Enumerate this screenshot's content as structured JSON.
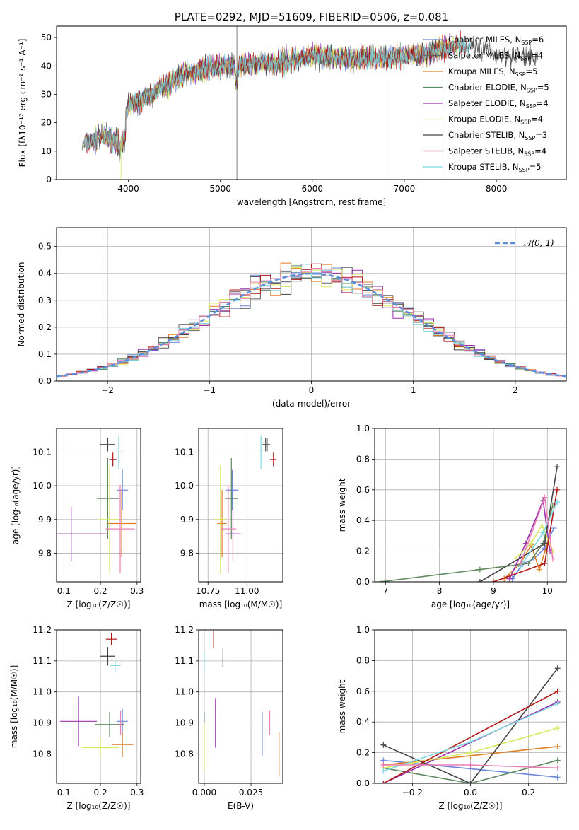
{
  "chart_data": [
    {
      "type": "line",
      "title": "PLATE=0292, MJD=51609, FIBERID=0506, z=0.081",
      "xlabel": "wavelength [Angstrom, rest frame]",
      "ylabel": "Flux [fλ10⁻¹⁷ erg cm⁻² s⁻¹ A⁻¹]",
      "xlim": [
        3220,
        8760
      ],
      "ylim": [
        0,
        54
      ],
      "xticks": [
        "4000",
        "5000",
        "6000",
        "7000",
        "8000"
      ],
      "yticks": [
        "0",
        "10",
        "20",
        "30",
        "40",
        "50"
      ],
      "legend_position": "right",
      "series": [
        {
          "name": "Chabrier MILES, N_SSP=6",
          "color": "#6a87d9"
        },
        {
          "name": "Salpeter MILES, N_SSP=4",
          "color": "#5f5f5f"
        },
        {
          "name": "Kroupa MILES, N_SSP=5",
          "color": "#e07d22"
        },
        {
          "name": "Chabrier ELODIE, N_SSP=5",
          "color": "#5e8a5e"
        },
        {
          "name": "Salpeter ELODIE, N_SSP=4",
          "color": "#9b30b0"
        },
        {
          "name": "Kroupa ELODIE, N_SSP=4",
          "color": "#d8e860"
        },
        {
          "name": "Chabrier STELIB, N_SSP=3",
          "color": "#444444"
        },
        {
          "name": "Salpeter STELIB, N_SSP=4",
          "color": "#b01515"
        },
        {
          "name": "Kroupa STELIB, N_SSP=5",
          "color": "#7fd8e0"
        }
      ],
      "approx_continuum": {
        "x": [
          3500,
          3700,
          3900,
          4000,
          4200,
          4400,
          4600,
          4800,
          5000,
          5200,
          5400,
          5600,
          5800,
          6000,
          6200,
          6400,
          6600,
          6800,
          7000,
          7200,
          7400,
          7600,
          7800,
          8000,
          8200,
          8400
        ],
        "y": [
          12,
          15,
          14,
          26,
          29,
          33,
          37,
          39,
          40,
          40,
          41,
          41,
          42,
          43,
          43,
          42,
          43,
          43,
          43,
          44,
          46,
          47,
          46,
          44,
          44,
          43
        ]
      }
    },
    {
      "type": "line",
      "xlabel": "(data-model)/error",
      "ylabel": "Normed distribution",
      "xlim": [
        -2.5,
        2.5
      ],
      "ylim": [
        0,
        0.57
      ],
      "xticks": [
        "−2",
        "−1",
        "0",
        "1",
        "2"
      ],
      "yticks": [
        "0.0",
        "0.1",
        "0.2",
        "0.3",
        "0.4",
        "0.5"
      ],
      "legend": "𝒩(0, 1)",
      "legend_position": "top-right",
      "grid": true,
      "reference_curve": {
        "type": "normal",
        "mean": 0,
        "sigma": 1,
        "color": "#5a8fde"
      }
    },
    {
      "type": "scatter",
      "xlabel": "Z [log₁₀(Z/Z☉)]",
      "ylabel": "age  [log₁₀(age/yr)]",
      "xlim": [
        0.08,
        0.31
      ],
      "ylim": [
        9.715,
        10.17
      ],
      "xticks": [
        "0.1",
        "0.2",
        "0.3"
      ],
      "yticks": [
        "9.8",
        "9.9",
        "10.0",
        "10.1"
      ],
      "grid": true,
      "points": [
        {
          "x": 0.26,
          "y": 9.987,
          "xerr": 0.015,
          "yerr": 0.06,
          "color": "#6a87d9"
        },
        {
          "x": 0.22,
          "y": 10.122,
          "xerr": 0.02,
          "yerr": 0.02,
          "color": "#5f5f5f"
        },
        {
          "x": 0.258,
          "y": 9.888,
          "xerr": 0.04,
          "yerr": 0.1,
          "color": "#e07d22"
        },
        {
          "x": 0.22,
          "y": 9.962,
          "xerr": 0.03,
          "yerr": 0.12,
          "color": "#5e8a5e"
        },
        {
          "x": 0.12,
          "y": 9.857,
          "xerr": 0.1,
          "yerr": 0.08,
          "color": "#9b30b0"
        },
        {
          "x": 0.225,
          "y": 9.9,
          "xerr": 0.03,
          "yerr": 0.16,
          "color": "#d8e860"
        },
        {
          "x": 0.22,
          "y": 10.122,
          "xerr": 0.02,
          "yerr": 0.02,
          "color": "#444444"
        },
        {
          "x": 0.234,
          "y": 10.078,
          "xerr": 0.01,
          "yerr": 0.02,
          "color": "#b01515"
        },
        {
          "x": 0.25,
          "y": 10.1,
          "xerr": 0.015,
          "yerr": 0.05,
          "color": "#7fd8e0"
        },
        {
          "x": 0.254,
          "y": 9.872,
          "xerr": 0.04,
          "yerr": 0.13,
          "color": "#e87fb5"
        }
      ]
    },
    {
      "type": "scatter",
      "xlabel": "mass [log₁₀(M/M☉)]",
      "xlim": [
        10.69,
        11.23
      ],
      "ylim": [
        9.715,
        10.17
      ],
      "xticks": [
        "10.75",
        "11.00"
      ],
      "yticks": [
        "9.8",
        "9.9",
        "10.0",
        "10.1"
      ],
      "grid": true,
      "points": [
        {
          "x": 10.905,
          "y": 9.987,
          "xerr": 0.04,
          "yerr": 0.06,
          "color": "#6a87d9"
        },
        {
          "x": 11.13,
          "y": 10.122,
          "xerr": 0.02,
          "yerr": 0.02,
          "color": "#5f5f5f"
        },
        {
          "x": 10.84,
          "y": 9.888,
          "xerr": 0.03,
          "yerr": 0.1,
          "color": "#e07d22"
        },
        {
          "x": 10.9,
          "y": 9.962,
          "xerr": 0.04,
          "yerr": 0.12,
          "color": "#5e8a5e"
        },
        {
          "x": 10.91,
          "y": 9.857,
          "xerr": 0.05,
          "yerr": 0.08,
          "color": "#9b30b0"
        },
        {
          "x": 10.83,
          "y": 9.9,
          "xerr": 0.04,
          "yerr": 0.16,
          "color": "#d8e860"
        },
        {
          "x": 11.12,
          "y": 10.122,
          "xerr": 0.02,
          "yerr": 0.02,
          "color": "#444444"
        },
        {
          "x": 11.17,
          "y": 10.078,
          "xerr": 0.02,
          "yerr": 0.02,
          "color": "#b01515"
        },
        {
          "x": 11.09,
          "y": 10.1,
          "xerr": 0.01,
          "yerr": 0.05,
          "color": "#7fd8e0"
        },
        {
          "x": 10.88,
          "y": 9.872,
          "xerr": 0.05,
          "yerr": 0.13,
          "color": "#e87fb5"
        }
      ]
    },
    {
      "type": "line",
      "xlabel": "age  [log₁₀(age/yr)]",
      "ylabel": "mass weight",
      "xlim": [
        6.8,
        10.35
      ],
      "ylim": [
        0,
        1.0
      ],
      "xticks": [
        "7",
        "8",
        "9",
        "10"
      ],
      "yticks": [
        "0.0",
        "0.2",
        "0.4",
        "0.6",
        "0.8",
        "1.0"
      ],
      "grid": true,
      "series": [
        {
          "color": "#6a87d9",
          "x": [
            9.35,
            9.55,
            9.75,
            9.95,
            10.12
          ],
          "y": [
            0.02,
            0.12,
            0.15,
            0.22,
            0.35
          ]
        },
        {
          "color": "#e07d22",
          "x": [
            9.2,
            9.5,
            9.7,
            9.85,
            10.0
          ],
          "y": [
            0.02,
            0.12,
            0.24,
            0.08,
            0.25
          ]
        },
        {
          "color": "#5e8a5e",
          "x": [
            6.9,
            8.75,
            9.65,
            9.92,
            10.1
          ],
          "y": [
            0.0,
            0.08,
            0.12,
            0.25,
            0.5
          ]
        },
        {
          "color": "#9b30b0",
          "x": [
            9.3,
            9.6,
            9.92,
            10.05
          ],
          "y": [
            0.02,
            0.25,
            0.53,
            0.2
          ]
        },
        {
          "color": "#d8e860",
          "x": [
            9.4,
            9.7,
            9.9,
            10.1
          ],
          "y": [
            0.15,
            0.25,
            0.37,
            0.2
          ]
        },
        {
          "color": "#444444",
          "x": [
            8.75,
            9.95,
            10.18
          ],
          "y": [
            0.0,
            0.25,
            0.75
          ]
        },
        {
          "color": "#b01515",
          "x": [
            9.0,
            9.95,
            10.18
          ],
          "y": [
            0.0,
            0.12,
            0.6
          ]
        },
        {
          "color": "#7fd8e0",
          "x": [
            9.5,
            9.92,
            10.18
          ],
          "y": [
            0.1,
            0.32,
            0.52
          ]
        },
        {
          "color": "#e87fb5",
          "x": [
            9.5,
            9.95,
            10.1
          ],
          "y": [
            0.12,
            0.55,
            0.15
          ]
        }
      ]
    },
    {
      "type": "scatter",
      "xlabel": "Z [log₁₀(Z/Z☉)]",
      "ylabel": "mass [log₁₀(M/M☉)]",
      "xlim": [
        0.08,
        0.31
      ],
      "ylim": [
        10.705,
        11.2
      ],
      "xticks": [
        "0.1",
        "0.2",
        "0.3"
      ],
      "yticks": [
        "10.8",
        "10.9",
        "11.0",
        "11.1",
        "11.2"
      ],
      "grid": true,
      "points": [
        {
          "x": 0.26,
          "y": 10.905,
          "xerr": 0.015,
          "yerr": 0.04,
          "color": "#6a87d9"
        },
        {
          "x": 0.26,
          "y": 10.83,
          "xerr": 0.03,
          "yerr": 0.04,
          "color": "#e07d22"
        },
        {
          "x": 0.225,
          "y": 10.895,
          "xerr": 0.04,
          "yerr": 0.04,
          "color": "#5e8a5e"
        },
        {
          "x": 0.14,
          "y": 10.905,
          "xerr": 0.05,
          "yerr": 0.08,
          "color": "#9b30b0"
        },
        {
          "x": 0.2,
          "y": 10.82,
          "xerr": 0.05,
          "yerr": 0.03,
          "color": "#d8e860"
        },
        {
          "x": 0.22,
          "y": 11.115,
          "xerr": 0.02,
          "yerr": 0.03,
          "color": "#444444"
        },
        {
          "x": 0.23,
          "y": 11.17,
          "xerr": 0.015,
          "yerr": 0.02,
          "color": "#b01515"
        },
        {
          "x": 0.24,
          "y": 11.085,
          "xerr": 0.015,
          "yerr": 0.02,
          "color": "#7fd8e0"
        },
        {
          "x": 0.255,
          "y": 10.9,
          "xerr": 0.01,
          "yerr": 0.04,
          "color": "#e87fb5"
        }
      ]
    },
    {
      "type": "scatter",
      "xlabel": "E(B-V)",
      "xlim": [
        -0.003,
        0.042
      ],
      "ylim": [
        10.705,
        11.2
      ],
      "xticks": [
        "0.000",
        "0.025"
      ],
      "yticks": [
        "10.8",
        "10.9",
        "11.0",
        "11.1",
        "11.2"
      ],
      "grid": true,
      "points": [
        {
          "x": 0.0,
          "y": 10.905,
          "yerr": 0.03,
          "color": "#5e8a5e"
        },
        {
          "x": 0.0,
          "y": 10.82,
          "yerr": 0.08,
          "color": "#d8e860"
        },
        {
          "x": 0.005,
          "y": 11.17,
          "yerr": 0.03,
          "color": "#b01515"
        },
        {
          "x": 0.006,
          "y": 10.9,
          "yerr": 0.08,
          "color": "#9b30b0"
        },
        {
          "x": 0.01,
          "y": 11.11,
          "yerr": 0.03,
          "color": "#444444"
        },
        {
          "x": 0.031,
          "y": 10.865,
          "yerr": 0.07,
          "color": "#6a87d9"
        },
        {
          "x": 0.035,
          "y": 10.9,
          "yerr": 0.04,
          "color": "#e87fb5"
        },
        {
          "x": 0.04,
          "y": 10.8,
          "yerr": 0.07,
          "color": "#e07d22"
        },
        {
          "x": 0.0,
          "y": 11.1,
          "yerr": 0.03,
          "color": "#7fd8e0"
        }
      ]
    },
    {
      "type": "line",
      "xlabel": "Z [log₁₀(Z/Z☉)]",
      "ylabel": "mass weight",
      "xlim": [
        -0.33,
        0.33
      ],
      "ylim": [
        0,
        1.0
      ],
      "xticks": [
        "−0.2",
        "0.0",
        "0.2"
      ],
      "yticks": [
        "0.0",
        "0.2",
        "0.4",
        "0.6",
        "0.8",
        "1.0"
      ],
      "grid": true,
      "series": [
        {
          "color": "#6a87d9",
          "x": [
            -0.3,
            0.3
          ],
          "y": [
            0.15,
            0.04
          ]
        },
        {
          "color": "#e07d22",
          "x": [
            -0.3,
            0.0,
            0.3
          ],
          "y": [
            0.12,
            0.18,
            0.24
          ]
        },
        {
          "color": "#5e8a5e",
          "x": [
            -0.3,
            0.0,
            0.3
          ],
          "y": [
            0.1,
            0.0,
            0.15
          ]
        },
        {
          "color": "#9b30b0",
          "x": [
            -0.3,
            0.3
          ],
          "y": [
            0.0,
            0.53
          ]
        },
        {
          "color": "#d8e860",
          "x": [
            -0.3,
            0.0,
            0.3
          ],
          "y": [
            0.1,
            0.2,
            0.36
          ]
        },
        {
          "color": "#444444",
          "x": [
            -0.3,
            0.0,
            0.3
          ],
          "y": [
            0.25,
            0.0,
            0.75
          ]
        },
        {
          "color": "#b01515",
          "x": [
            -0.3,
            0.3
          ],
          "y": [
            0.0,
            0.6
          ]
        },
        {
          "color": "#7fd8e0",
          "x": [
            -0.3,
            0.0,
            0.3
          ],
          "y": [
            0.08,
            0.27,
            0.52
          ]
        },
        {
          "color": "#e87fb5",
          "x": [
            -0.3,
            0.0,
            0.3
          ],
          "y": [
            0.12,
            0.12,
            0.1
          ]
        }
      ]
    }
  ]
}
